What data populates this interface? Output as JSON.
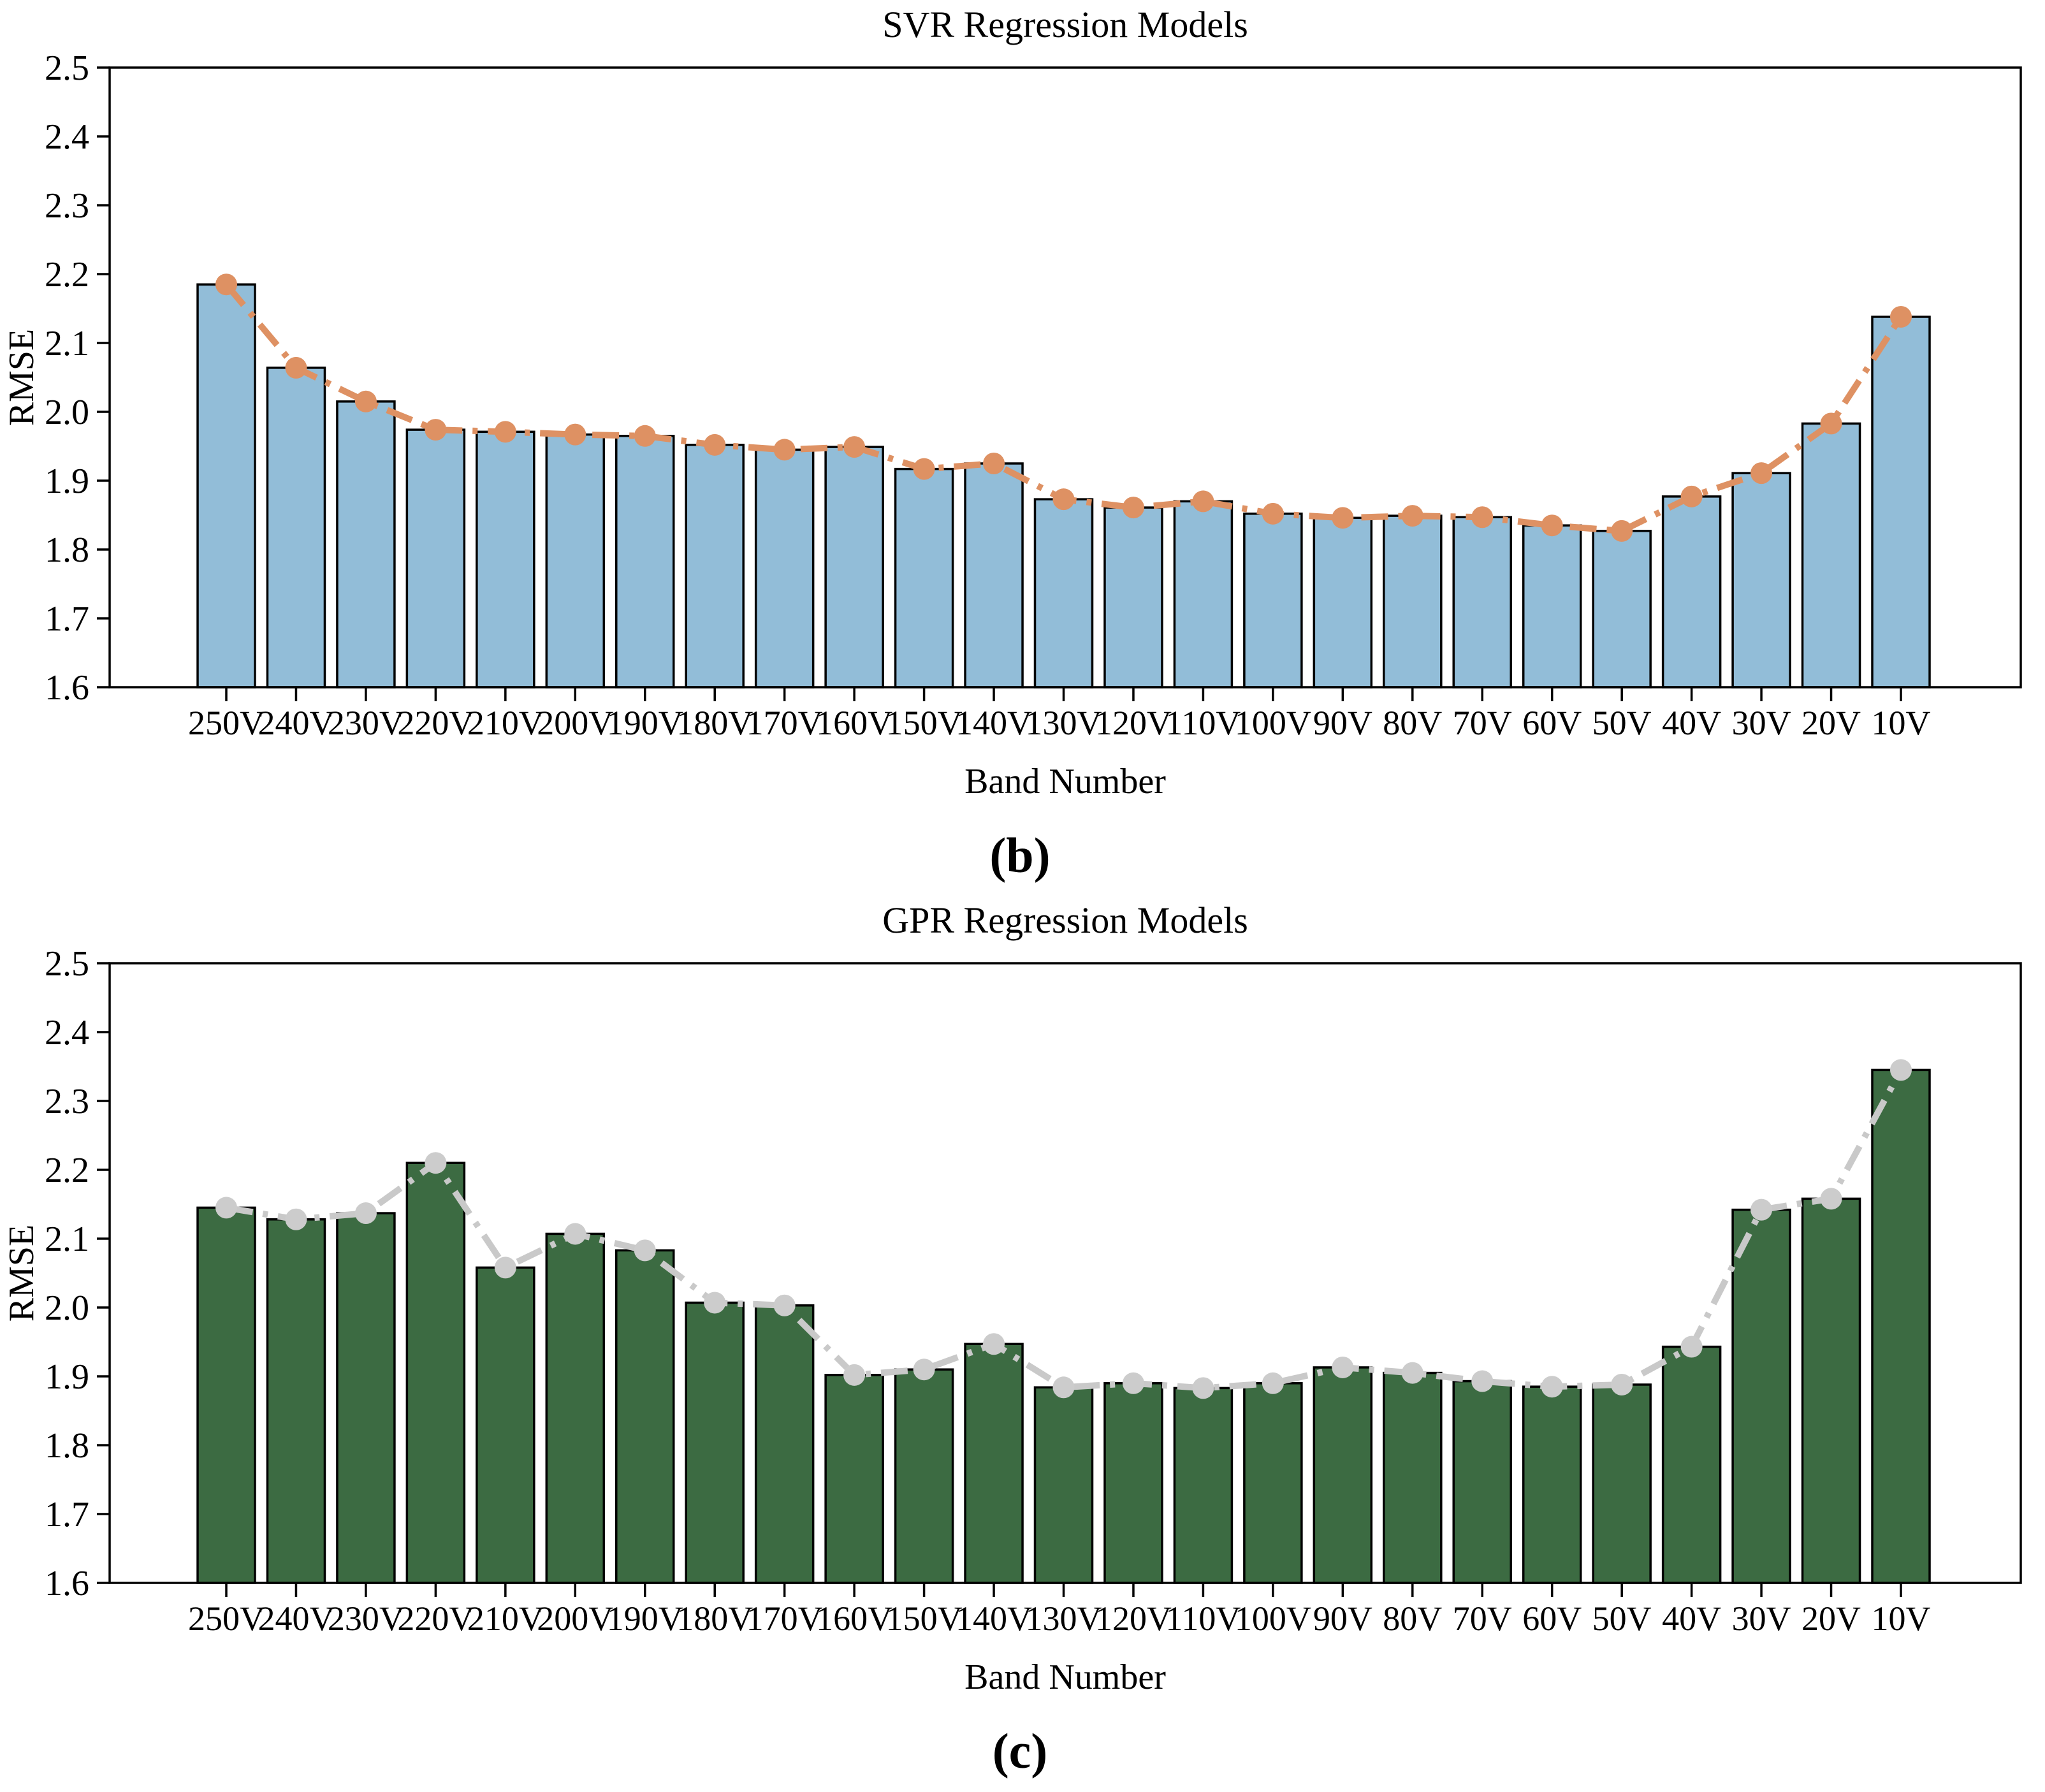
{
  "figure_background": "#ffffff",
  "chart_data": [
    {
      "type": "bar+line",
      "title": "SVR Regression Models",
      "xlabel": "Band Number",
      "ylabel": "RMSE",
      "caption": "(b)",
      "legend": "none",
      "grid": false,
      "ylim": [
        1.6,
        2.5
      ],
      "yticks": [
        "1.6",
        "1.7",
        "1.8",
        "1.9",
        "2.0",
        "2.1",
        "2.2",
        "2.3",
        "2.4",
        "2.5"
      ],
      "categories": [
        "250V",
        "240V",
        "230V",
        "220V",
        "210V",
        "200V",
        "190V",
        "180V",
        "170V",
        "160V",
        "150V",
        "140V",
        "130V",
        "120V",
        "110V",
        "100V",
        "90V",
        "80V",
        "70V",
        "60V",
        "50V",
        "40V",
        "30V",
        "20V",
        "10V"
      ],
      "bar_values": [
        2.185,
        2.064,
        2.015,
        1.974,
        1.971,
        1.967,
        1.965,
        1.952,
        1.945,
        1.949,
        1.917,
        1.925,
        1.873,
        1.861,
        1.87,
        1.852,
        1.846,
        1.849,
        1.847,
        1.835,
        1.827,
        1.877,
        1.911,
        1.983,
        2.138
      ],
      "line_values": [
        2.185,
        2.064,
        2.015,
        1.974,
        1.971,
        1.967,
        1.965,
        1.952,
        1.945,
        1.949,
        1.917,
        1.925,
        1.873,
        1.861,
        1.87,
        1.852,
        1.846,
        1.849,
        1.847,
        1.835,
        1.827,
        1.877,
        1.911,
        1.983,
        2.138
      ],
      "colors": {
        "bar_fill": "#92bdd8",
        "bar_edge": "#000000",
        "line": "#de9163",
        "marker": "#de9163",
        "axis": "#000000",
        "text": "#000000"
      },
      "line_style": "dash-dot"
    },
    {
      "type": "bar+line",
      "title": "GPR Regression Models",
      "xlabel": "Band Number",
      "ylabel": "RMSE",
      "caption": "(c)",
      "legend": "none",
      "grid": false,
      "ylim": [
        1.6,
        2.5
      ],
      "yticks": [
        "1.6",
        "1.7",
        "1.8",
        "1.9",
        "2.0",
        "2.1",
        "2.2",
        "2.3",
        "2.4",
        "2.5"
      ],
      "categories": [
        "250V",
        "240V",
        "230V",
        "220V",
        "210V",
        "200V",
        "190V",
        "180V",
        "170V",
        "160V",
        "150V",
        "140V",
        "130V",
        "120V",
        "110V",
        "100V",
        "90V",
        "80V",
        "70V",
        "60V",
        "50V",
        "40V",
        "30V",
        "20V",
        "10V"
      ],
      "bar_values": [
        2.145,
        2.128,
        2.137,
        2.21,
        2.058,
        2.107,
        2.083,
        2.007,
        2.003,
        1.902,
        1.91,
        1.947,
        1.884,
        1.89,
        1.883,
        1.89,
        1.913,
        1.905,
        1.893,
        1.885,
        1.888,
        1.943,
        2.142,
        2.158,
        2.345
      ],
      "line_values": [
        2.145,
        2.128,
        2.137,
        2.21,
        2.058,
        2.107,
        2.083,
        2.007,
        2.003,
        1.902,
        1.91,
        1.947,
        1.884,
        1.89,
        1.883,
        1.89,
        1.913,
        1.905,
        1.893,
        1.885,
        1.888,
        1.943,
        2.142,
        2.158,
        2.345
      ],
      "colors": {
        "bar_fill": "#3c6b42",
        "bar_edge": "#000000",
        "line": "#c9c9c9",
        "marker": "#cccccc",
        "axis": "#000000",
        "text": "#000000"
      },
      "line_style": "dash-dot"
    }
  ]
}
